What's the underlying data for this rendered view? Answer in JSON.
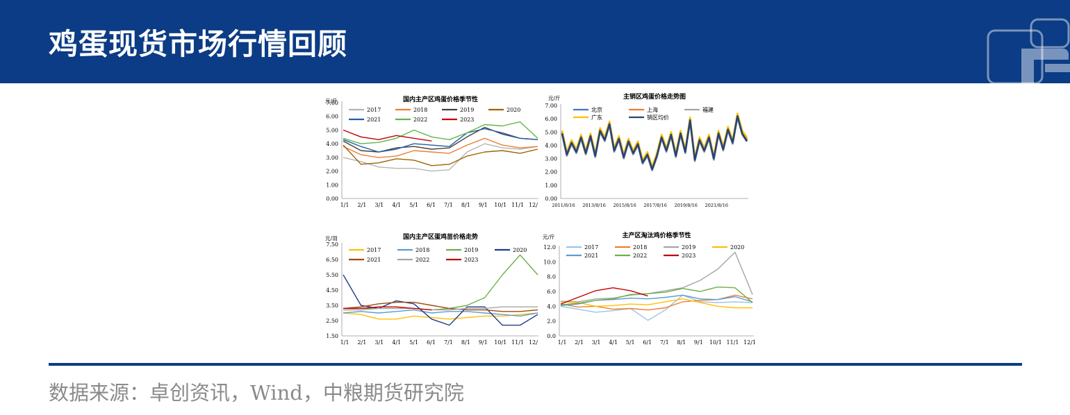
{
  "page": {
    "title": "鸡蛋现货市场行情回顾",
    "source": "数据来源：卓创资讯，Wind，中粮期货研究院",
    "colors": {
      "header": "#0b3c85",
      "source_text": "#8a8a8a"
    },
    "logo_icon": "company-logo-icon"
  },
  "chart_data": [
    {
      "type": "line",
      "title": "国内主产区鸡蛋价格季节性",
      "yunit": "元/斤",
      "ylim": [
        0,
        7
      ],
      "yticks": [
        "7.00",
        "6.00",
        "5.00",
        "4.00",
        "3.00",
        "2.00",
        "1.00",
        "0.00"
      ],
      "xticks": [
        "1/1",
        "2/1",
        "3/1",
        "4/1",
        "5/1",
        "6/1",
        "7/1",
        "8/1",
        "9/1",
        "10/1",
        "11/1",
        "12/1"
      ],
      "x": [
        "1/1",
        "2/1",
        "3/1",
        "4/1",
        "5/1",
        "6/1",
        "7/1",
        "8/1",
        "9/1",
        "10/1",
        "11/1",
        "12/1"
      ],
      "grid": false,
      "legend": "top",
      "series": [
        {
          "name": "2017",
          "color": "#b5b5b5",
          "values": [
            3.0,
            2.7,
            2.3,
            2.2,
            2.2,
            2.0,
            2.1,
            3.4,
            4.0,
            3.7,
            3.6,
            3.8
          ]
        },
        {
          "name": "2018",
          "color": "#ed7d31",
          "values": [
            3.8,
            3.2,
            3.0,
            3.1,
            3.5,
            3.4,
            3.3,
            3.9,
            4.4,
            3.9,
            3.7,
            3.8
          ]
        },
        {
          "name": "2019",
          "color": "#404040",
          "values": [
            4.2,
            3.5,
            3.4,
            3.7,
            3.8,
            3.6,
            3.7,
            4.5,
            5.2,
            4.7,
            4.4,
            4.3
          ]
        },
        {
          "name": "2020",
          "color": "#9c6500",
          "values": [
            3.9,
            2.5,
            2.6,
            2.9,
            2.8,
            2.4,
            2.5,
            3.1,
            3.4,
            3.5,
            3.3,
            3.6
          ]
        },
        {
          "name": "2021",
          "color": "#255e9e",
          "values": [
            4.3,
            3.8,
            3.4,
            3.6,
            4.0,
            3.9,
            3.8,
            4.8,
            5.1,
            4.8,
            4.4,
            4.3
          ]
        },
        {
          "name": "2022",
          "color": "#5db84a",
          "values": [
            4.4,
            4.0,
            4.1,
            4.4,
            5.0,
            4.5,
            4.3,
            4.8,
            5.4,
            5.3,
            5.6,
            4.4
          ]
        },
        {
          "name": "2023",
          "color": "#c00000",
          "values": [
            5.0,
            4.5,
            4.3,
            4.6,
            4.4,
            4.2,
            null,
            null,
            null,
            null,
            null,
            null
          ]
        }
      ]
    },
    {
      "type": "line",
      "title": "主销区鸡蛋价格走势图",
      "yunit": "元/斤",
      "ylim": [
        0,
        7
      ],
      "yticks": [
        "7.00",
        "6.00",
        "5.00",
        "4.00",
        "3.00",
        "2.00",
        "1.00",
        "0.00"
      ],
      "xticks": [
        "2011/8/16",
        "2013/8/16",
        "2015/8/16",
        "2017/8/16",
        "2019/8/16",
        "2021/8/16"
      ],
      "grid": false,
      "legend": "top-left",
      "series": [
        {
          "name": "北京",
          "color": "#4472c4",
          "values": [
            4.9,
            3.3,
            4.2,
            3.5,
            4.6,
            3.4,
            4.7,
            3.2,
            5.1,
            4.4,
            5.6,
            3.6,
            4.5,
            3.1,
            4.3,
            3.4,
            4.1,
            2.7,
            3.3,
            2.2,
            3.2,
            4.6,
            3.6,
            4.8,
            3.2,
            4.9,
            3.5,
            5.9,
            2.9,
            4.4,
            3.6,
            4.6,
            3.0,
            4.9,
            3.7,
            5.2,
            4.2,
            6.2,
            4.9,
            4.4
          ]
        },
        {
          "name": "上海",
          "color": "#ed7d31",
          "values": [
            5.0,
            3.4,
            4.3,
            3.6,
            4.7,
            3.5,
            4.8,
            3.3,
            5.2,
            4.5,
            5.7,
            3.7,
            4.6,
            3.2,
            4.4,
            3.5,
            4.2,
            2.8,
            3.4,
            2.3,
            3.3,
            4.7,
            3.7,
            4.9,
            3.3,
            5.0,
            3.6,
            6.0,
            3.0,
            4.5,
            3.7,
            4.7,
            3.1,
            5.0,
            3.8,
            5.3,
            4.3,
            6.3,
            5.0,
            4.5
          ]
        },
        {
          "name": "福建",
          "color": "#a5a5a5",
          "values": [
            4.8,
            3.2,
            4.1,
            3.4,
            4.5,
            3.3,
            4.6,
            3.1,
            5.0,
            4.3,
            5.5,
            3.5,
            4.4,
            3.0,
            4.2,
            3.3,
            4.0,
            2.6,
            3.2,
            2.1,
            3.1,
            4.5,
            3.5,
            4.7,
            3.1,
            4.8,
            3.4,
            5.8,
            2.8,
            4.3,
            3.5,
            4.5,
            2.9,
            4.8,
            3.6,
            5.1,
            4.1,
            6.1,
            4.8,
            4.3
          ]
        },
        {
          "name": "广东",
          "color": "#ffc000",
          "values": [
            5.1,
            3.5,
            4.4,
            3.7,
            4.8,
            3.6,
            4.9,
            3.4,
            5.3,
            4.6,
            5.8,
            3.8,
            4.7,
            3.3,
            4.5,
            3.6,
            4.3,
            2.9,
            3.5,
            2.4,
            3.4,
            4.8,
            3.8,
            5.0,
            3.4,
            5.1,
            3.7,
            6.1,
            3.1,
            4.6,
            3.8,
            4.8,
            3.2,
            5.1,
            3.9,
            5.4,
            4.4,
            6.4,
            5.1,
            4.6
          ]
        },
        {
          "name": "销区均价",
          "color": "#264478",
          "values": [
            4.9,
            3.3,
            4.2,
            3.5,
            4.6,
            3.4,
            4.7,
            3.2,
            5.1,
            4.4,
            5.6,
            3.6,
            4.5,
            3.1,
            4.3,
            3.4,
            4.1,
            2.7,
            3.3,
            2.2,
            3.2,
            4.6,
            3.6,
            4.8,
            3.2,
            4.9,
            3.5,
            5.9,
            2.9,
            4.4,
            3.6,
            4.6,
            3.0,
            4.9,
            3.7,
            5.2,
            4.2,
            6.2,
            4.9,
            4.3
          ]
        }
      ]
    },
    {
      "type": "line",
      "title": "国内主产区蛋鸡苗价格走势",
      "yunit": "元/羽",
      "ylim": [
        1.5,
        7.5
      ],
      "yticks": [
        "7.50",
        "6.50",
        "5.50",
        "4.50",
        "3.50",
        "2.50",
        "1.50"
      ],
      "xticks": [
        "1/1",
        "2/1",
        "3/1",
        "4/1",
        "5/1",
        "6/1",
        "7/1",
        "8/1",
        "9/1",
        "10/1",
        "11/1",
        "12/1"
      ],
      "x": [
        "1/1",
        "2/1",
        "3/1",
        "4/1",
        "5/1",
        "6/1",
        "7/1",
        "8/1",
        "9/1",
        "10/1",
        "11/1",
        "12/1"
      ],
      "grid": false,
      "legend": "top",
      "series": [
        {
          "name": "2017",
          "color": "#ffc000",
          "values": [
            3.0,
            2.9,
            2.6,
            2.6,
            2.8,
            2.7,
            2.6,
            2.7,
            2.8,
            2.8,
            2.9,
            3.0
          ]
        },
        {
          "name": "2018",
          "color": "#5b9bd5",
          "values": [
            3.0,
            3.1,
            3.0,
            3.1,
            3.2,
            3.0,
            3.1,
            3.1,
            3.0,
            2.9,
            2.8,
            3.0
          ]
        },
        {
          "name": "2019",
          "color": "#70ad47",
          "values": [
            3.3,
            3.3,
            3.3,
            3.3,
            3.3,
            3.2,
            3.3,
            3.5,
            4.0,
            5.5,
            6.8,
            5.5
          ]
        },
        {
          "name": "2020",
          "color": "#1f3c88",
          "values": [
            5.5,
            3.5,
            3.3,
            3.8,
            3.6,
            2.6,
            2.2,
            3.4,
            3.4,
            2.2,
            2.2,
            2.9
          ]
        },
        {
          "name": "2021",
          "color": "#9e480e",
          "values": [
            3.3,
            3.4,
            3.6,
            3.7,
            3.7,
            3.5,
            3.3,
            3.2,
            3.2,
            3.1,
            3.1,
            3.2
          ]
        },
        {
          "name": "2022",
          "color": "#a5a5a5",
          "values": [
            3.2,
            3.2,
            3.3,
            3.3,
            3.3,
            3.2,
            3.2,
            3.3,
            3.3,
            3.4,
            3.4,
            3.4
          ]
        },
        {
          "name": "2023",
          "color": "#c00000",
          "values": [
            3.3,
            3.3,
            3.4,
            3.4,
            3.3,
            3.2,
            null,
            null,
            null,
            null,
            null,
            null
          ]
        }
      ]
    },
    {
      "type": "line",
      "title": "主产区淘汰鸡价格季节性",
      "yunit": "元/斤",
      "ylim": [
        0,
        12
      ],
      "yticks": [
        "12.0",
        "10.0",
        "8.0",
        "6.0",
        "4.0",
        "2.0",
        "0.0"
      ],
      "xticks": [
        "1/1",
        "2/1",
        "3/1",
        "4/1",
        "5/1",
        "6/1",
        "7/1",
        "8/1",
        "9/1",
        "10/1",
        "11/1",
        "12/1"
      ],
      "x": [
        "1/1",
        "2/1",
        "3/1",
        "4/1",
        "5/1",
        "6/1",
        "7/1",
        "8/1",
        "9/1",
        "10/1",
        "11/1",
        "12/1"
      ],
      "grid": false,
      "legend": "top",
      "series": [
        {
          "name": "2017",
          "color": "#9dc3e6",
          "values": [
            4.0,
            3.6,
            3.2,
            3.4,
            3.7,
            2.1,
            3.5,
            5.5,
            4.6,
            4.5,
            4.6,
            4.5
          ]
        },
        {
          "name": "2018",
          "color": "#ed7d31",
          "values": [
            4.3,
            3.9,
            4.0,
            3.6,
            3.7,
            3.5,
            3.8,
            4.6,
            4.8,
            4.9,
            5.5,
            5.0
          ]
        },
        {
          "name": "2019",
          "color": "#a5a5a5",
          "values": [
            4.7,
            4.6,
            5.0,
            5.1,
            5.5,
            5.7,
            6.1,
            6.5,
            7.5,
            9.0,
            11.3,
            5.6
          ]
        },
        {
          "name": "2020",
          "color": "#ffc000",
          "values": [
            4.6,
            4.5,
            4.0,
            4.1,
            4.3,
            4.2,
            4.6,
            5.0,
            4.5,
            4.0,
            3.8,
            3.8
          ]
        },
        {
          "name": "2021",
          "color": "#5b9bd5",
          "values": [
            4.1,
            4.3,
            4.8,
            4.9,
            5.1,
            5.0,
            5.2,
            5.5,
            5.0,
            4.9,
            5.3,
            4.6
          ]
        },
        {
          "name": "2022",
          "color": "#70ad47",
          "values": [
            4.2,
            4.4,
            4.8,
            5.0,
            5.6,
            5.7,
            5.9,
            6.4,
            6.0,
            6.6,
            6.5,
            4.5
          ]
        },
        {
          "name": "2023",
          "color": "#c00000",
          "values": [
            4.3,
            5.2,
            6.1,
            6.5,
            6.1,
            5.4,
            null,
            null,
            null,
            null,
            null,
            null
          ]
        }
      ]
    }
  ]
}
